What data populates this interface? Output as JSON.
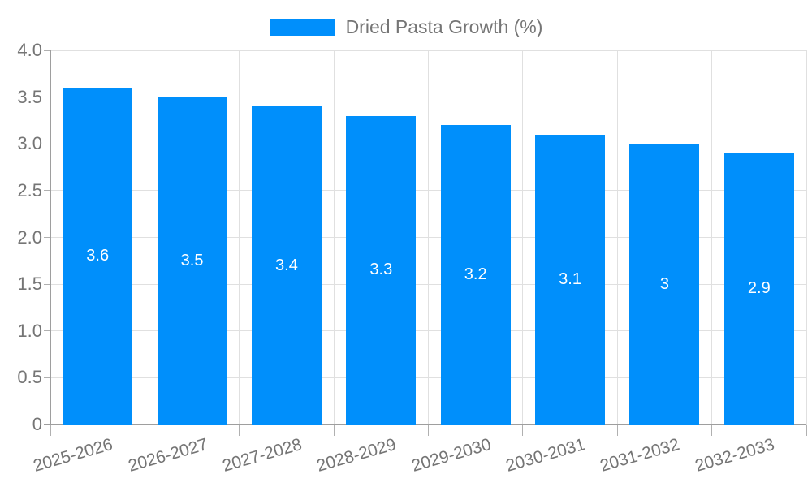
{
  "legend": {
    "label": "Dried Pasta Growth (%)"
  },
  "colors": {
    "bar": "#008FFB",
    "grid": "#e0e0e0",
    "axis_line": "#9e9e9e",
    "tick_mark": "#b0b0b0",
    "axis_text": "#757575",
    "value_text": "#ffffff"
  },
  "chart_data": {
    "type": "bar",
    "title": "",
    "series_name": "Dried Pasta Growth (%)",
    "categories": [
      "2025-2026",
      "2026-2027",
      "2027-2028",
      "2028-2029",
      "2029-2030",
      "2030-2031",
      "2031-2032",
      "2032-2033"
    ],
    "values": [
      3.6,
      3.5,
      3.4,
      3.3,
      3.2,
      3.1,
      3,
      2.9
    ],
    "value_labels": [
      "3.6",
      "3.5",
      "3.4",
      "3.3",
      "3.2",
      "3.1",
      "3",
      "2.9"
    ],
    "xlabel": "",
    "ylabel": "",
    "ylim": [
      0,
      4
    ],
    "yticks": {
      "values": [
        0,
        0.5,
        1,
        1.5,
        2,
        2.5,
        3,
        3.5,
        4
      ],
      "labels": [
        "0",
        "0.5",
        "1.0",
        "1.5",
        "2.0",
        "2.5",
        "3.0",
        "3.5",
        "4.0"
      ]
    },
    "grid": "on",
    "legend_position": "top-center",
    "value_label_position": "bar-center"
  }
}
